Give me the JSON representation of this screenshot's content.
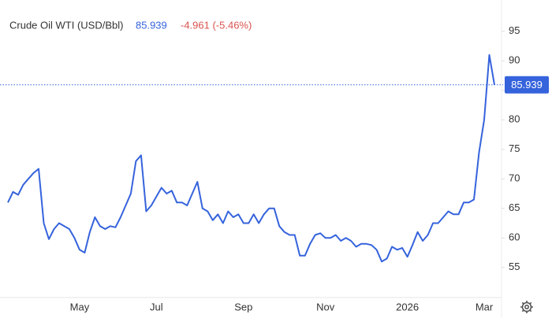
{
  "chart_data": {
    "type": "line",
    "title": "Crude Oil WTI (USD/Bbl)",
    "change": "-4.961 (-5.46%)",
    "categories": [
      null,
      null,
      null,
      null,
      null,
      null,
      null,
      null,
      null,
      null,
      null,
      null,
      null,
      null,
      "May",
      null,
      null,
      null,
      null,
      null,
      null,
      null,
      null,
      null,
      null,
      null,
      null,
      null,
      null,
      "Jul",
      null,
      null,
      null,
      null,
      null,
      null,
      null,
      null,
      null,
      null,
      null,
      null,
      null,
      null,
      null,
      null,
      "Sep",
      null,
      null,
      null,
      null,
      null,
      null,
      null,
      null,
      null,
      null,
      null,
      null,
      null,
      null,
      null,
      "Nov",
      null,
      null,
      null,
      null,
      null,
      null,
      null,
      null,
      null,
      null,
      null,
      null,
      null,
      null,
      null,
      "2026",
      null,
      null,
      null,
      null,
      null,
      null,
      null,
      null,
      null,
      null,
      null,
      null,
      null,
      null,
      "Mar",
      null,
      null
    ],
    "series": [
      {
        "name": "Crude Oil WTI",
        "color": "#3563dc",
        "values": [
          66,
          67.8,
          67.3,
          69,
          70,
          71,
          71.7,
          62.5,
          59.8,
          61.5,
          62.5,
          62,
          61.5,
          60,
          58,
          57.5,
          61,
          63.5,
          62,
          61.5,
          62,
          61.8,
          63.5,
          65.5,
          67.5,
          73,
          74,
          64.5,
          65.5,
          67,
          68.5,
          67.5,
          68,
          66,
          66,
          65.5,
          67.5,
          69.5,
          65,
          64.5,
          63,
          64,
          62.5,
          64.5,
          63.5,
          64,
          62.5,
          62.5,
          64,
          62.5,
          64,
          65,
          65,
          62,
          61,
          60.5,
          60.5,
          57,
          57,
          59,
          60.5,
          60.8,
          60,
          60,
          60.5,
          59.5,
          60,
          59.5,
          58.5,
          59,
          59,
          58.8,
          58,
          56,
          56.5,
          58.5,
          58,
          58.3,
          56.8,
          58.8,
          61,
          59.5,
          60.5,
          62.5,
          62.5,
          63.5,
          64.5,
          64,
          64,
          66,
          66,
          66.5,
          74.5,
          80,
          91,
          85.939
        ]
      }
    ],
    "ylim": [
      50.3,
      100.3
    ],
    "yticks": [
      55,
      60,
      65,
      70,
      75,
      80,
      85,
      90,
      95
    ]
  }
}
